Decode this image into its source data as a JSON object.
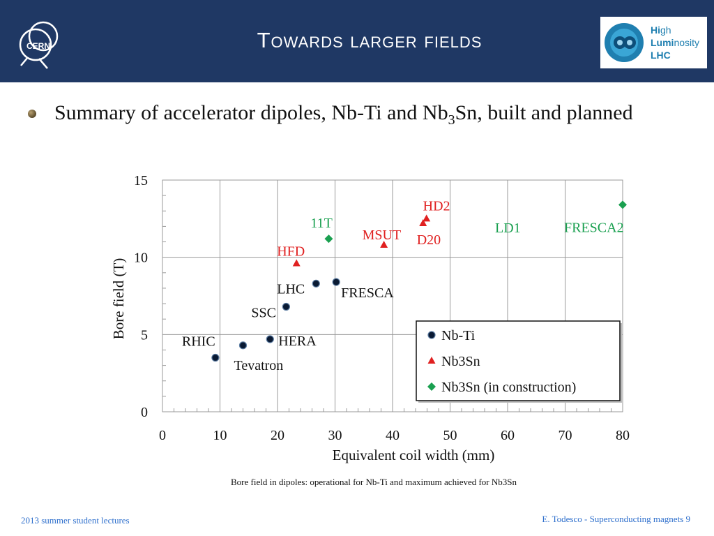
{
  "header": {
    "title": "Towards larger fields"
  },
  "logos": {
    "cern": "CERN",
    "hl_line1_a": "Hi",
    "hl_line1_b": "gh",
    "hl_line2_a": "Lumi",
    "hl_line2_b": "nosity",
    "hl_line3": "LHC"
  },
  "colors": {
    "header_bg": "#1f3864",
    "nbti": "#0a1a33",
    "nb3sn": "#e02020",
    "construction": "#1aa050",
    "footer": "#2e6fcc"
  },
  "bullet": {
    "text_a": "Summary of accelerator dipoles, Nb-Ti and Nb",
    "sub": "3",
    "text_b": "Sn, built and planned"
  },
  "caption": "Bore field in dipoles: operational for Nb-Ti and maximum achieved for Nb3Sn",
  "footer": {
    "left": "2013 summer student lectures",
    "right": "E. Todesco - Superconducting magnets 9"
  },
  "chart_data": {
    "type": "scatter",
    "xlabel": "Equivalent coil width (mm)",
    "ylabel": "Bore field (T)",
    "xlim": [
      0,
      80
    ],
    "ylim": [
      0,
      15
    ],
    "xticks": [
      0,
      10,
      20,
      30,
      40,
      50,
      60,
      70,
      80
    ],
    "yticks": [
      0,
      5,
      10,
      15
    ],
    "grid": true,
    "legend_position": "bottom-right",
    "series": [
      {
        "name": "Nb-Ti",
        "marker": "circle",
        "color": "#0a1a33",
        "points": [
          {
            "label": "RHIC",
            "x": 9.2,
            "y": 3.5
          },
          {
            "label": "Tevatron",
            "x": 14.0,
            "y": 4.3
          },
          {
            "label": "HERA",
            "x": 18.7,
            "y": 4.7
          },
          {
            "label": "SSC",
            "x": 21.5,
            "y": 6.8
          },
          {
            "label": "LHC",
            "x": 26.7,
            "y": 8.3
          },
          {
            "label": "FRESCA",
            "x": 30.2,
            "y": 8.4
          }
        ]
      },
      {
        "name": "Nb3Sn",
        "marker": "triangle",
        "color": "#e02020",
        "points": [
          {
            "label": "HFD",
            "x": 23.3,
            "y": 9.6
          },
          {
            "label": "MSUT",
            "x": 38.5,
            "y": 10.8
          },
          {
            "label": "D20",
            "x": 45.3,
            "y": 12.2
          },
          {
            "label": "HD2",
            "x": 45.9,
            "y": 12.5
          }
        ]
      },
      {
        "name": "Nb3Sn (in construction)",
        "marker": "diamond",
        "color": "#1aa050",
        "points": [
          {
            "label": "11T",
            "x": 28.9,
            "y": 11.2
          },
          {
            "label": "LD1",
            "x": null,
            "y": null
          },
          {
            "label": "FRESCA2",
            "x": 80.0,
            "y": 13.4
          }
        ]
      }
    ]
  }
}
